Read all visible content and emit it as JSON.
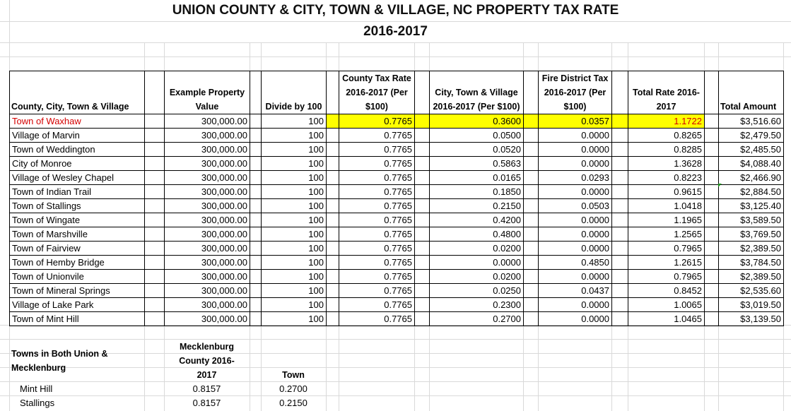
{
  "title": {
    "line1": "UNION COUNTY & CITY, TOWN & VILLAGE, NC PROPERTY TAX RATE",
    "line2": "2016-2017"
  },
  "table": {
    "headers": {
      "name": "County, City, Town & Village",
      "value": "Example Property Value",
      "divide": "Divide by 100",
      "county": "County Tax Rate 2016-2017 (Per $100)",
      "town": "City, Town & Village 2016-2017 (Per $100)",
      "fire": "Fire District Tax 2016-2017 (Per $100)",
      "total_rate": "Total Rate 2016-2017",
      "total_amount": "Total Amount"
    },
    "rows": [
      {
        "name": "Town of Waxhaw",
        "value": "300,000.00",
        "divide": "100",
        "county": "0.7765",
        "town": "0.3600",
        "fire": "0.0357",
        "total_rate": "1.1722",
        "total_amount": "$3,516.60"
      },
      {
        "name": "Village of Marvin",
        "value": "300,000.00",
        "divide": "100",
        "county": "0.7765",
        "town": "0.0500",
        "fire": "0.0000",
        "total_rate": "0.8265",
        "total_amount": "$2,479.50"
      },
      {
        "name": "Town of Weddington",
        "value": "300,000.00",
        "divide": "100",
        "county": "0.7765",
        "town": "0.0520",
        "fire": "0.0000",
        "total_rate": "0.8285",
        "total_amount": "$2,485.50"
      },
      {
        "name": "City of Monroe",
        "value": "300,000.00",
        "divide": "100",
        "county": "0.7765",
        "town": "0.5863",
        "fire": "0.0000",
        "total_rate": "1.3628",
        "total_amount": "$4,088.40"
      },
      {
        "name": "Village of Wesley Chapel",
        "value": "300,000.00",
        "divide": "100",
        "county": "0.7765",
        "town": "0.0165",
        "fire": "0.0293",
        "total_rate": "0.8223",
        "total_amount": "$2,466.90"
      },
      {
        "name": "Town of Indian Trail",
        "value": "300,000.00",
        "divide": "100",
        "county": "0.7765",
        "town": "0.1850",
        "fire": "0.0000",
        "total_rate": "0.9615",
        "total_amount": "$2,884.50"
      },
      {
        "name": "Town of Stallings",
        "value": "300,000.00",
        "divide": "100",
        "county": "0.7765",
        "town": "0.2150",
        "fire": "0.0503",
        "total_rate": "1.0418",
        "total_amount": "$3,125.40"
      },
      {
        "name": "Town of Wingate",
        "value": "300,000.00",
        "divide": "100",
        "county": "0.7765",
        "town": "0.4200",
        "fire": "0.0000",
        "total_rate": "1.1965",
        "total_amount": "$3,589.50"
      },
      {
        "name": "Town of Marshville",
        "value": "300,000.00",
        "divide": "100",
        "county": "0.7765",
        "town": "0.4800",
        "fire": "0.0000",
        "total_rate": "1.2565",
        "total_amount": "$3,769.50"
      },
      {
        "name": "Town of Fairview",
        "value": "300,000.00",
        "divide": "100",
        "county": "0.7765",
        "town": "0.0200",
        "fire": "0.0000",
        "total_rate": "0.7965",
        "total_amount": "$2,389.50"
      },
      {
        "name": "Town of Hemby Bridge",
        "value": "300,000.00",
        "divide": "100",
        "county": "0.7765",
        "town": "0.0000",
        "fire": "0.4850",
        "total_rate": "1.2615",
        "total_amount": "$3,784.50"
      },
      {
        "name": "Town of Unionvile",
        "value": "300,000.00",
        "divide": "100",
        "county": "0.7765",
        "town": "0.0200",
        "fire": "0.0000",
        "total_rate": "0.7965",
        "total_amount": "$2,389.50"
      },
      {
        "name": "Town of Mineral Springs",
        "value": "300,000.00",
        "divide": "100",
        "county": "0.7765",
        "town": "0.0250",
        "fire": "0.0437",
        "total_rate": "0.8452",
        "total_amount": "$2,535.60"
      },
      {
        "name": "Village of Lake Park",
        "value": "300,000.00",
        "divide": "100",
        "county": "0.7765",
        "town": "0.2300",
        "fire": "0.0000",
        "total_rate": "1.0065",
        "total_amount": "$3,019.50"
      },
      {
        "name": "Town of Mint Hill",
        "value": "300,000.00",
        "divide": "100",
        "county": "0.7765",
        "town": "0.2700",
        "fire": "0.0000",
        "total_rate": "1.0465",
        "total_amount": "$3,139.50"
      }
    ]
  },
  "lower": {
    "heading": "Towns in Both Union & Mecklenburg",
    "meck_header": "Mecklenburg County 2016-2017",
    "town_header": "Town",
    "rows": [
      {
        "name": "Mint Hill",
        "meck": "0.8157",
        "town": "0.2700"
      },
      {
        "name": "Stallings",
        "meck": "0.8157",
        "town": "0.2150"
      }
    ]
  }
}
